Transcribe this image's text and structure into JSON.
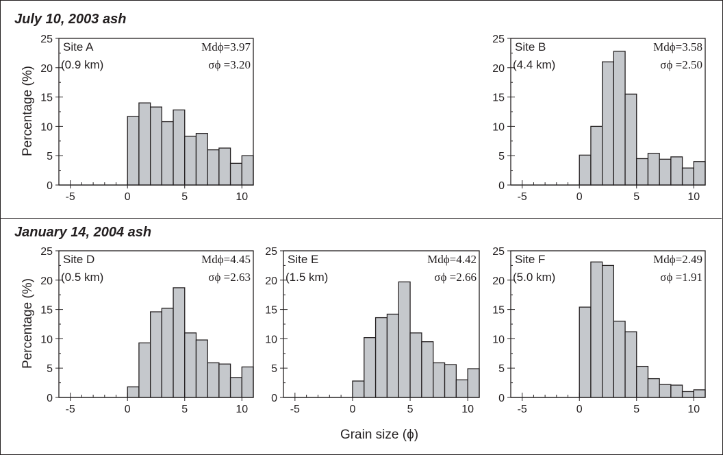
{
  "sections": {
    "top": "July 10, 2003 ash",
    "bottom": "January 14, 2004 ash"
  },
  "axis_labels": {
    "ylabel": "Percentage (%)",
    "xlabel": "Grain size (ϕ)"
  },
  "colors": {
    "bar_fill": "#c5c8cc",
    "ink": "#231f20"
  },
  "chart_data": [
    {
      "type": "bar",
      "site": "Site A",
      "distance": "(0.9 km)",
      "median": "Mdϕ=3.97",
      "sigma": "σϕ =3.20",
      "x": [
        0,
        1,
        2,
        3,
        4,
        5,
        6,
        7,
        8,
        9,
        10
      ],
      "values": [
        11.7,
        14.0,
        13.3,
        10.8,
        12.8,
        8.3,
        8.8,
        6.0,
        6.3,
        3.7,
        5.0
      ],
      "xlim": [
        -6,
        11
      ],
      "ylim": [
        0,
        25
      ],
      "xticks": [
        "-5",
        "0",
        "5",
        "10"
      ],
      "yticks": [
        "0",
        "5",
        "10",
        "15",
        "20",
        "25"
      ]
    },
    {
      "type": "bar",
      "site": "Site B",
      "distance": "(4.4 km)",
      "median": "Mdϕ=3.58",
      "sigma": "σϕ =2.50",
      "x": [
        0,
        1,
        2,
        3,
        4,
        5,
        6,
        7,
        8,
        9,
        10
      ],
      "values": [
        5.1,
        10.0,
        21.0,
        22.8,
        15.5,
        4.5,
        5.4,
        4.4,
        4.8,
        2.9,
        4.0
      ],
      "xlim": [
        -6,
        11
      ],
      "ylim": [
        0,
        25
      ],
      "xticks": [
        "-5",
        "0",
        "5",
        "10"
      ],
      "yticks": [
        "0",
        "5",
        "10",
        "15",
        "20",
        "25"
      ]
    },
    {
      "type": "bar",
      "site": "Site D",
      "distance": "(0.5 km)",
      "median": "Mdϕ=4.45",
      "sigma": "σϕ =2.63",
      "x": [
        0,
        1,
        2,
        3,
        4,
        5,
        6,
        7,
        8,
        9,
        10
      ],
      "values": [
        1.8,
        9.3,
        14.6,
        15.2,
        18.7,
        11.0,
        9.8,
        5.9,
        5.7,
        3.4,
        5.2
      ],
      "xlim": [
        -6,
        11
      ],
      "ylim": [
        0,
        25
      ],
      "xticks": [
        "-5",
        "0",
        "5",
        "10"
      ],
      "yticks": [
        "0",
        "5",
        "10",
        "15",
        "20",
        "25"
      ]
    },
    {
      "type": "bar",
      "site": "Site E",
      "distance": "(1.5 km)",
      "median": "Mdϕ=4.42",
      "sigma": "σϕ =2.66",
      "x": [
        0,
        1,
        2,
        3,
        4,
        5,
        6,
        7,
        8,
        9,
        10
      ],
      "values": [
        2.8,
        10.2,
        13.6,
        14.2,
        19.7,
        11.0,
        9.5,
        5.9,
        5.6,
        3.0,
        4.9
      ],
      "xlim": [
        -6,
        11
      ],
      "ylim": [
        0,
        25
      ],
      "xticks": [
        "-5",
        "0",
        "5",
        "10"
      ],
      "yticks": [
        "0",
        "5",
        "10",
        "15",
        "20",
        "25"
      ]
    },
    {
      "type": "bar",
      "site": "Site F",
      "distance": "(5.0 km)",
      "median": "Mdϕ=2.49",
      "sigma": "σϕ =1.91",
      "x": [
        0,
        1,
        2,
        3,
        4,
        5,
        6,
        7,
        8,
        9,
        10
      ],
      "values": [
        15.4,
        23.1,
        22.5,
        13.0,
        11.2,
        5.3,
        3.2,
        2.2,
        2.1,
        1.0,
        1.3
      ],
      "xlim": [
        -6,
        11
      ],
      "ylim": [
        0,
        25
      ],
      "xticks": [
        "-5",
        "0",
        "5",
        "10"
      ],
      "yticks": [
        "0",
        "5",
        "10",
        "15",
        "20",
        "25"
      ]
    }
  ]
}
